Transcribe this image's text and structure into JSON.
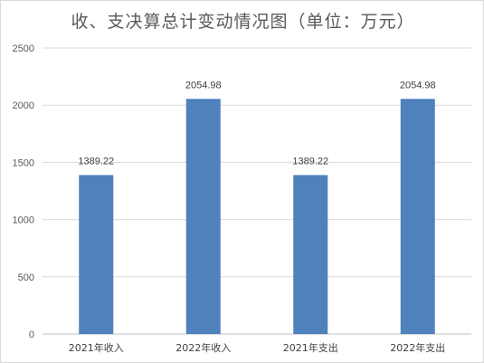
{
  "chart_data": {
    "type": "bar",
    "title": "收、支决算总计变动情况图（单位：万元）",
    "categories": [
      "2021年收入",
      "2022年收入",
      "2021年支出",
      "2022年支出"
    ],
    "values": [
      1389.22,
      2054.98,
      1389.22,
      2054.98
    ],
    "data_labels": [
      "1389.22",
      "2054.98",
      "1389.22",
      "2054.98"
    ],
    "ylim": [
      0,
      2500
    ],
    "yticks": [
      0,
      500,
      1000,
      1500,
      2000,
      2500
    ],
    "ytick_labels": [
      "0",
      "500",
      "1000",
      "1500",
      "2000",
      "2500"
    ],
    "xlabel": "",
    "ylabel": "",
    "grid": true,
    "legend": "none",
    "colors": {
      "bar": "#4f81bd",
      "grid": "#d9d9d9",
      "axis": "#bfbfbf"
    }
  }
}
